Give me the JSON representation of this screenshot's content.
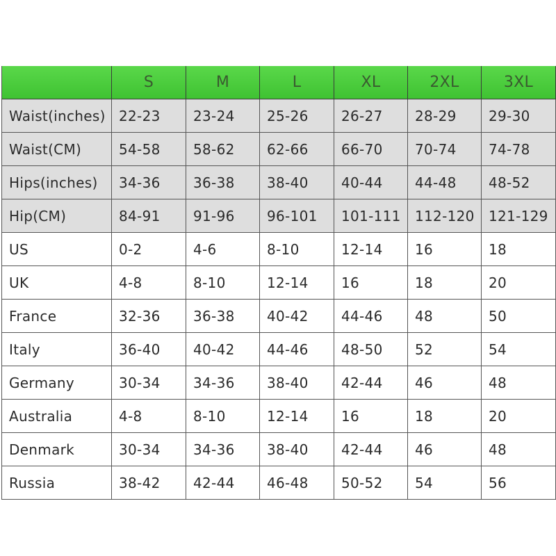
{
  "table": {
    "columns": [
      "S",
      "M",
      "L",
      "XL",
      "2XL",
      "3XL"
    ],
    "rows": [
      {
        "label": "Waist(inches)",
        "cells": [
          "22-23",
          "23-24",
          "25-26",
          "26-27",
          "28-29",
          "29-30"
        ]
      },
      {
        "label": "Waist(CM)",
        "cells": [
          "54-58",
          "58-62",
          "62-66",
          "66-70",
          "70-74",
          "74-78"
        ]
      },
      {
        "label": "Hips(inches)",
        "cells": [
          "34-36",
          "36-38",
          "38-40",
          "40-44",
          "44-48",
          "48-52"
        ]
      },
      {
        "label": "Hip(CM)",
        "cells": [
          "84-91",
          "91-96",
          "96-101",
          "101-111",
          "112-120",
          "121-129"
        ]
      },
      {
        "label": "US",
        "cells": [
          "0-2",
          "4-6",
          "8-10",
          "12-14",
          "16",
          "18"
        ]
      },
      {
        "label": "UK",
        "cells": [
          "4-8",
          "8-10",
          "12-14",
          "16",
          "18",
          "20"
        ]
      },
      {
        "label": "France",
        "cells": [
          "32-36",
          "36-38",
          "40-42",
          "44-46",
          "48",
          "50"
        ]
      },
      {
        "label": "Italy",
        "cells": [
          "36-40",
          "40-42",
          "44-46",
          "48-50",
          "52",
          "54"
        ]
      },
      {
        "label": "Germany",
        "cells": [
          "30-34",
          "34-36",
          "38-40",
          "42-44",
          "46",
          "48"
        ]
      },
      {
        "label": "Australia",
        "cells": [
          "4-8",
          "8-10",
          "12-14",
          "16",
          "18",
          "20"
        ]
      },
      {
        "label": "Denmark",
        "cells": [
          "30-34",
          "34-36",
          "38-40",
          "42-44",
          "46",
          "48"
        ]
      },
      {
        "label": "Russia",
        "cells": [
          "38-42",
          "42-44",
          "46-48",
          "50-52",
          "54",
          "56"
        ]
      }
    ]
  }
}
